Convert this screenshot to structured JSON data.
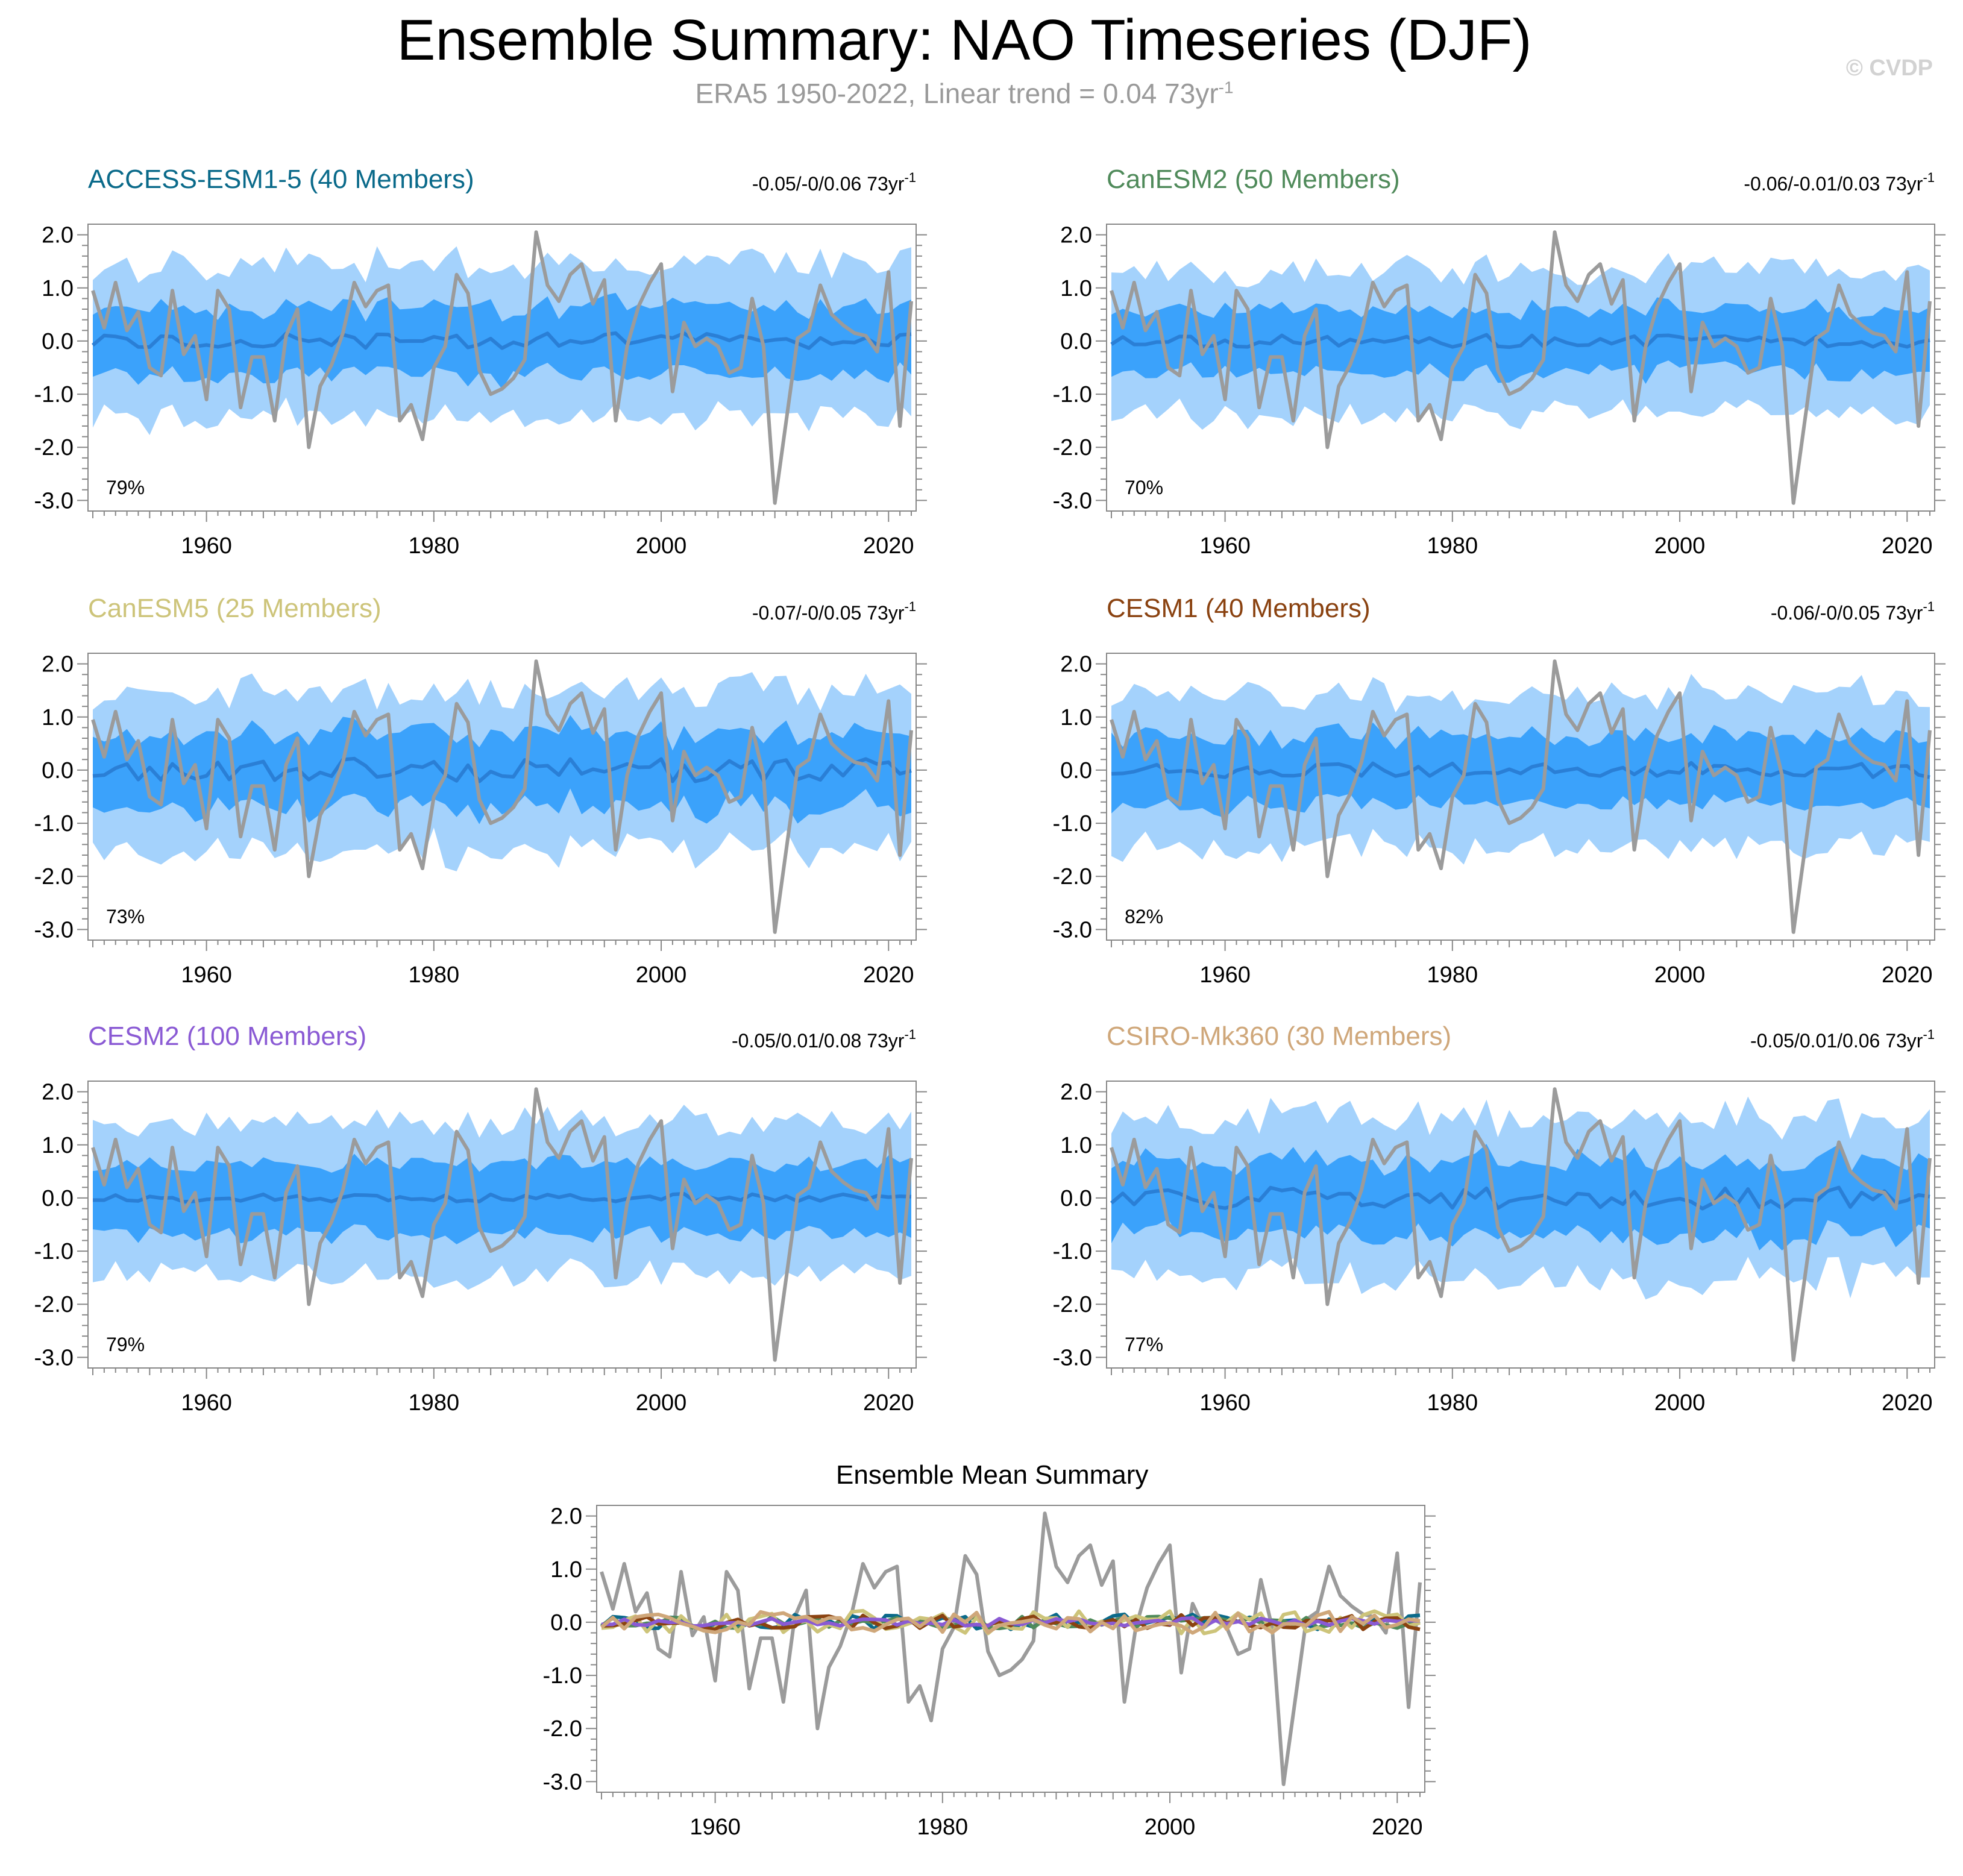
{
  "title": "Ensemble Summary: NAO Timeseries (DJF)",
  "subtitle": {
    "text": "ERA5 1950-2022, Linear trend = 0.04 73yr",
    "exponent": "-1"
  },
  "copyright": "© CVDP",
  "colors": {
    "outer_band": "#a4d2fc",
    "inner_band": "#3ba2fb",
    "ensemble_mean": "#2a7fd6",
    "observations": "#9b9b9b"
  },
  "chart_data": [
    {
      "type": "line",
      "title": "ACCESS-ESM1-5 (40 Members)",
      "title_color": "#0a6a8a",
      "trend_text": "-0.05/-0/0.06 73yr",
      "trend_exponent": "-1",
      "percent": "79%",
      "x_range": [
        1950,
        2022
      ],
      "x_ticks": [
        "1960",
        "1980",
        "2000",
        "2020"
      ],
      "ylim": [
        -3.0,
        2.0
      ],
      "y_ticks": [
        "2.0",
        "1.0",
        "0.0",
        "-1.0",
        "-2.0",
        "-3.0"
      ],
      "seed": 11,
      "mean_amp": 0.15,
      "inner_amp": 0.62,
      "outer_amp": 1.45
    },
    {
      "type": "line",
      "title": "CanESM2 (50 Members)",
      "title_color": "#4f8a5a",
      "trend_text": "-0.06/-0.01/0.03 73yr",
      "trend_exponent": "-1",
      "percent": "70%",
      "x_range": [
        1950,
        2022
      ],
      "x_ticks": [
        "1960",
        "1980",
        "2000",
        "2020"
      ],
      "ylim": [
        -3.0,
        2.0
      ],
      "y_ticks": [
        "2.0",
        "1.0",
        "0.0",
        "-1.0",
        "-2.0",
        "-3.0"
      ],
      "seed": 23,
      "mean_amp": 0.12,
      "inner_amp": 0.58,
      "outer_amp": 1.35
    },
    {
      "type": "line",
      "title": "CanESM5 (25 Members)",
      "title_color": "#cdc47a",
      "trend_text": "-0.07/-0/0.05 73yr",
      "trend_exponent": "-1",
      "percent": "73%",
      "x_range": [
        1950,
        2022
      ],
      "x_ticks": [
        "1960",
        "1980",
        "2000",
        "2020"
      ],
      "ylim": [
        -3.0,
        2.0
      ],
      "y_ticks": [
        "2.0",
        "1.0",
        "0.0",
        "-1.0",
        "-2.0",
        "-3.0"
      ],
      "seed": 37,
      "mean_amp": 0.22,
      "inner_amp": 0.68,
      "outer_amp": 1.5
    },
    {
      "type": "line",
      "title": "CESM1 (40 Members)",
      "title_color": "#8a4210",
      "trend_text": "-0.06/-0/0.05 73yr",
      "trend_exponent": "-1",
      "percent": "82%",
      "x_range": [
        1950,
        2022
      ],
      "x_ticks": [
        "1960",
        "1980",
        "2000",
        "2020"
      ],
      "ylim": [
        -3.0,
        2.0
      ],
      "y_ticks": [
        "2.0",
        "1.0",
        "0.0",
        "-1.0",
        "-2.0",
        "-3.0"
      ],
      "seed": 41,
      "mean_amp": 0.14,
      "inner_amp": 0.62,
      "outer_amp": 1.45
    },
    {
      "type": "line",
      "title": "CESM2 (100 Members)",
      "title_color": "#8a5ad4",
      "trend_text": "-0.05/0.01/0.08 73yr",
      "trend_exponent": "-1",
      "percent": "79%",
      "x_range": [
        1950,
        2022
      ],
      "x_ticks": [
        "1960",
        "1980",
        "2000",
        "2020"
      ],
      "ylim": [
        -3.0,
        2.0
      ],
      "y_ticks": [
        "2.0",
        "1.0",
        "0.0",
        "-1.0",
        "-2.0",
        "-3.0"
      ],
      "seed": 53,
      "mean_amp": 0.08,
      "inner_amp": 0.65,
      "outer_amp": 1.45
    },
    {
      "type": "line",
      "title": "CSIRO-Mk360 (30 Members)",
      "title_color": "#cfa77a",
      "trend_text": "-0.05/0.01/0.06 73yr",
      "trend_exponent": "-1",
      "percent": "77%",
      "x_range": [
        1950,
        2022
      ],
      "x_ticks": [
        "1960",
        "1980",
        "2000",
        "2020"
      ],
      "ylim": [
        -3.0,
        2.0
      ],
      "y_ticks": [
        "2.0",
        "1.0",
        "0.0",
        "-1.0",
        "-2.0",
        "-3.0"
      ],
      "seed": 67,
      "mean_amp": 0.2,
      "inner_amp": 0.68,
      "outer_amp": 1.5
    },
    {
      "type": "line",
      "title": "Ensemble Mean Summary",
      "title_color": "#000000",
      "x_range": [
        1950,
        2022
      ],
      "x_ticks": [
        "1960",
        "1980",
        "2000",
        "2020"
      ],
      "ylim": [
        -3.0,
        2.0
      ],
      "y_ticks": [
        "2.0",
        "1.0",
        "0.0",
        "-1.0",
        "-2.0",
        "-3.0"
      ],
      "series_colors": [
        "#0a6a8a",
        "#4f8a5a",
        "#cdc47a",
        "#8a4210",
        "#8a5ad4",
        "#cfa77a"
      ]
    }
  ],
  "observations": {
    "years_start": 1950,
    "values": [
      0.95,
      0.25,
      1.1,
      0.2,
      0.55,
      -0.5,
      -0.65,
      0.95,
      -0.25,
      0.1,
      -1.1,
      0.95,
      0.6,
      -1.25,
      -0.3,
      -0.3,
      -1.5,
      0.1,
      0.6,
      -2.0,
      -0.85,
      -0.45,
      0.15,
      1.1,
      0.65,
      0.95,
      1.05,
      -1.5,
      -1.2,
      -1.85,
      -0.5,
      -0.1,
      1.25,
      0.9,
      -0.55,
      -1.0,
      -0.9,
      -0.7,
      -0.35,
      2.05,
      1.05,
      0.75,
      1.25,
      1.45,
      0.7,
      1.15,
      -1.5,
      -0.1,
      0.65,
      1.1,
      1.45,
      -0.95,
      0.35,
      -0.1,
      0.05,
      -0.1,
      -0.6,
      -0.5,
      0.8,
      -0.1,
      -3.05,
      -1.5,
      0.05,
      0.2,
      1.05,
      0.5,
      0.3,
      0.15,
      0.1,
      -0.2,
      1.3,
      -1.6,
      0.75
    ]
  }
}
